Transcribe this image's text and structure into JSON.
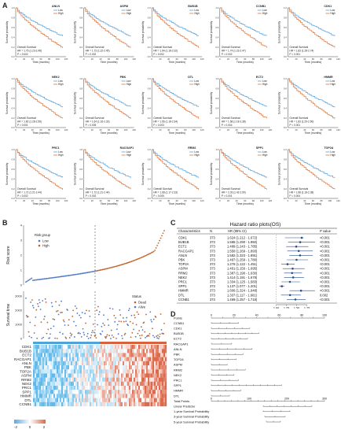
{
  "panels": {
    "A": "A",
    "B": "B",
    "C": "C",
    "D": "D"
  },
  "km": {
    "ylabel": "Survival probability",
    "xlabel": "Time (months)",
    "legend": {
      "low": "Low",
      "high": "High"
    },
    "os_label": "Overall Survival",
    "xticks": [
      "0",
      "20",
      "40",
      "60",
      "80",
      "100",
      "120"
    ],
    "yticks": [
      "1.0",
      "0.8",
      "0.6",
      "0.4",
      "0.2",
      "0.0"
    ],
    "colors": {
      "low": "#5aa0d8",
      "high": "#d9733b"
    },
    "plots": [
      {
        "gene": "ANLN",
        "hr": "HR = 1.75 (1.23-2.48)",
        "p": "P = 0.002"
      },
      {
        "gene": "ASPM",
        "hr": "HR = 1.73 (1.22-2.45)",
        "p": "P = 0.002"
      },
      {
        "gene": "BUB1B",
        "hr": "HR = 1.84 (1.18-2.32)",
        "p": "P = 0.002"
      },
      {
        "gene": "CCNB1",
        "hr": "HR = 1.74 (1.23-2.47)",
        "p": "P = 0.002"
      },
      {
        "gene": "CDK1",
        "hr": "HR = 1.83 (1.28-2.74)",
        "p": "P < 0.001"
      },
      {
        "gene": "NEK2",
        "hr": "HR = 1.82 (1.28-2.56)",
        "p": "P < 0.001"
      },
      {
        "gene": "PBK",
        "hr": "HR = 1.64 (1.16-2.33)",
        "p": "P = 0.005"
      },
      {
        "gene": "DTL",
        "hr": "HR = 1.66 (1.18-2.34)",
        "p": "P = 0.003"
      },
      {
        "gene": "ECT2",
        "hr": "HR = 1.68 (1.18-2.38)",
        "p": "P = 0.004"
      },
      {
        "gene": "HMMR",
        "hr": "HR = 1.83 (1.29-2.60)",
        "p": "P < 0.001"
      },
      {
        "gene": "PRC1",
        "hr": "HR = 1.72 (1.21-2.44)",
        "p": "P = 0.002"
      },
      {
        "gene": "RACGAP1",
        "hr": "HR = 1.72 (1.21-2.44)",
        "p": "P = 0.002"
      },
      {
        "gene": "RRM2",
        "hr": "HR = 1.68 (1.17-2.33)",
        "p": "P = 0.005"
      },
      {
        "gene": "SPP1",
        "hr": "HR = 2.03 (1.42-2.90)",
        "p": "P < 0.001"
      },
      {
        "gene": "TOP2A",
        "hr": "HR = 1.68 (1.18-2.38)",
        "p": "P = 0.004"
      }
    ]
  },
  "risk": {
    "ylabel": "Risk score",
    "yticks": [
      "4",
      "3",
      "2",
      "1",
      "0"
    ],
    "legend_title": "Risk group",
    "legend": [
      "Low",
      "High"
    ],
    "colors": {
      "low": "#4e79c3",
      "high": "#c0622c"
    }
  },
  "survival": {
    "ylabel": "Survival time",
    "yticks": [
      "3000",
      "2000",
      "1000",
      "0"
    ],
    "legend_title": "Status",
    "legend": [
      "Dead",
      "Alive"
    ],
    "colors": {
      "dead": "#c0622c",
      "alive": "#4e79c3"
    }
  },
  "heatmap": {
    "genes": [
      "CDK1",
      "BUB1B",
      "ECT2",
      "RACGAP1",
      "ANLN",
      "PBK",
      "TOP2A",
      "ASPM",
      "RRM2",
      "NEK2",
      "PRC1",
      "SPP1",
      "HMMR",
      "DTL",
      "CCNB1"
    ],
    "scale_ticks": [
      "-2",
      "0",
      "2"
    ],
    "group_colors": {
      "low": "#4fa3d6",
      "high": "#d6633d"
    }
  },
  "forest": {
    "title": "Hazard ratio plots(OS)",
    "headers": {
      "char": "Characteristics",
      "n": "N",
      "hr": "HR (95% CI)",
      "p": "P value"
    },
    "axis_ticks": [
      "1.00",
      "1.25",
      "1.50",
      "1.75"
    ],
    "rows": [
      {
        "gene": "CDK1",
        "n": "373",
        "hr": "1.624 (1.212 - 1.672)",
        "p": "<0.001"
      },
      {
        "gene": "BUB1B",
        "n": "373",
        "hr": "1.586 (1.290 - 1.950)",
        "p": "<0.001"
      },
      {
        "gene": "ECT2",
        "n": "373",
        "hr": "1.489 (1.243 - 1.785)",
        "p": "<0.001"
      },
      {
        "gene": "RACGAP1",
        "n": "373",
        "hr": "1.550 (1.269 - 1.893)",
        "p": "<0.001"
      },
      {
        "gene": "ANLN",
        "n": "373",
        "hr": "1.582 (1.323 - 1.891)",
        "p": "<0.001"
      },
      {
        "gene": "PBK",
        "n": "373",
        "hr": "1.497 (1.259 - 1.780)",
        "p": "<0.001"
      },
      {
        "gene": "TOP2A",
        "n": "373",
        "hr": "1.276 (1.122 - 1.451)",
        "p": "<0.001"
      },
      {
        "gene": "ASPM",
        "n": "373",
        "hr": "1.401 (1.156 - 1.695)",
        "p": "<0.001"
      },
      {
        "gene": "RRM2",
        "n": "373",
        "hr": "1.387 (1.190 - 1.630)",
        "p": "<0.001"
      },
      {
        "gene": "NEK2",
        "n": "373",
        "hr": "1.414 (1.191 - 1.678)",
        "p": "<0.001"
      },
      {
        "gene": "PRC1",
        "n": "373",
        "hr": "1.334 (1.125 - 1.583)",
        "p": "<0.001"
      },
      {
        "gene": "SPP1",
        "n": "373",
        "hr": "1.137 (1.077 - 1.201)",
        "p": "<0.001"
      },
      {
        "gene": "HMMR",
        "n": "373",
        "hr": "1.606 (1.324 - 1.948)",
        "p": "<0.001"
      },
      {
        "gene": "DTL",
        "n": "373",
        "hr": "1.337 (1.117 - 1.601)",
        "p": "0.002"
      },
      {
        "gene": "CCNB1",
        "n": "373",
        "hr": "1.469 (1.257 - 1.718)",
        "p": "<0.001"
      }
    ]
  },
  "nomogram": {
    "rows": [
      "Points",
      "CCNB1",
      "CDK1",
      "BUB1B",
      "ECT2",
      "RACGAP1",
      "ANLN",
      "PBK",
      "TOP2A",
      "ASPM",
      "RRM2",
      "NEK2",
      "PRC1",
      "SPP1",
      "HMMR",
      "DTL",
      "Total Points",
      "Linear Predictor",
      "1-year Survival Probability",
      "3-year Survival Probability",
      "5-year Survival Probability"
    ],
    "points_ticks": [
      "0",
      "20",
      "40",
      "60",
      "80",
      "100"
    ],
    "total_ticks": [
      "0",
      "100",
      "200",
      "300"
    ]
  }
}
